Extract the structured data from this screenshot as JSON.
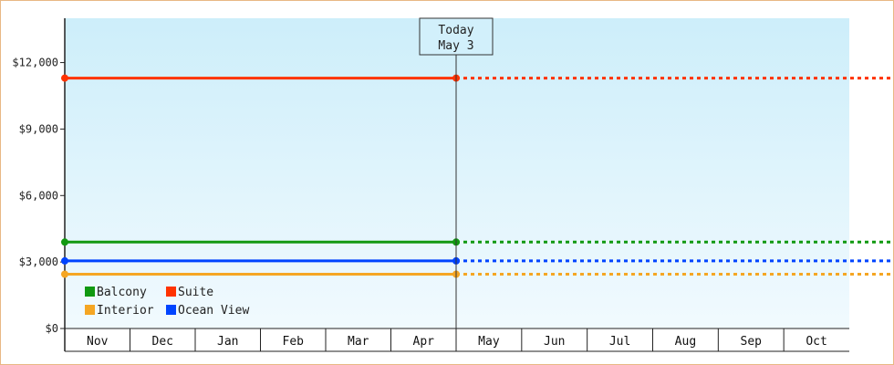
{
  "chart_data": {
    "type": "line",
    "title": "",
    "xlabel": "",
    "ylabel": "",
    "ylim": [
      0,
      14000
    ],
    "y_ticks": [
      0,
      3000,
      6000,
      9000,
      12000
    ],
    "y_tick_labels": [
      "$0",
      "$3,000",
      "$6,000",
      "$9,000",
      "$12,000"
    ],
    "categories": [
      "Nov",
      "Dec",
      "Jan",
      "Feb",
      "Mar",
      "Apr",
      "May",
      "Jun",
      "Jul",
      "Aug",
      "Sep",
      "Oct"
    ],
    "today_marker": {
      "line1": "Today",
      "line2": "May 3"
    },
    "legend_placement": "bottom-left",
    "grid": false,
    "series": [
      {
        "name": "Balcony",
        "color": "#119911",
        "value": 3900
      },
      {
        "name": "Suite",
        "color": "#ff3300",
        "value": 11300
      },
      {
        "name": "Interior",
        "color": "#f5a623",
        "value": 2450
      },
      {
        "name": "Ocean View",
        "color": "#0044ff",
        "value": 3050
      }
    ]
  }
}
